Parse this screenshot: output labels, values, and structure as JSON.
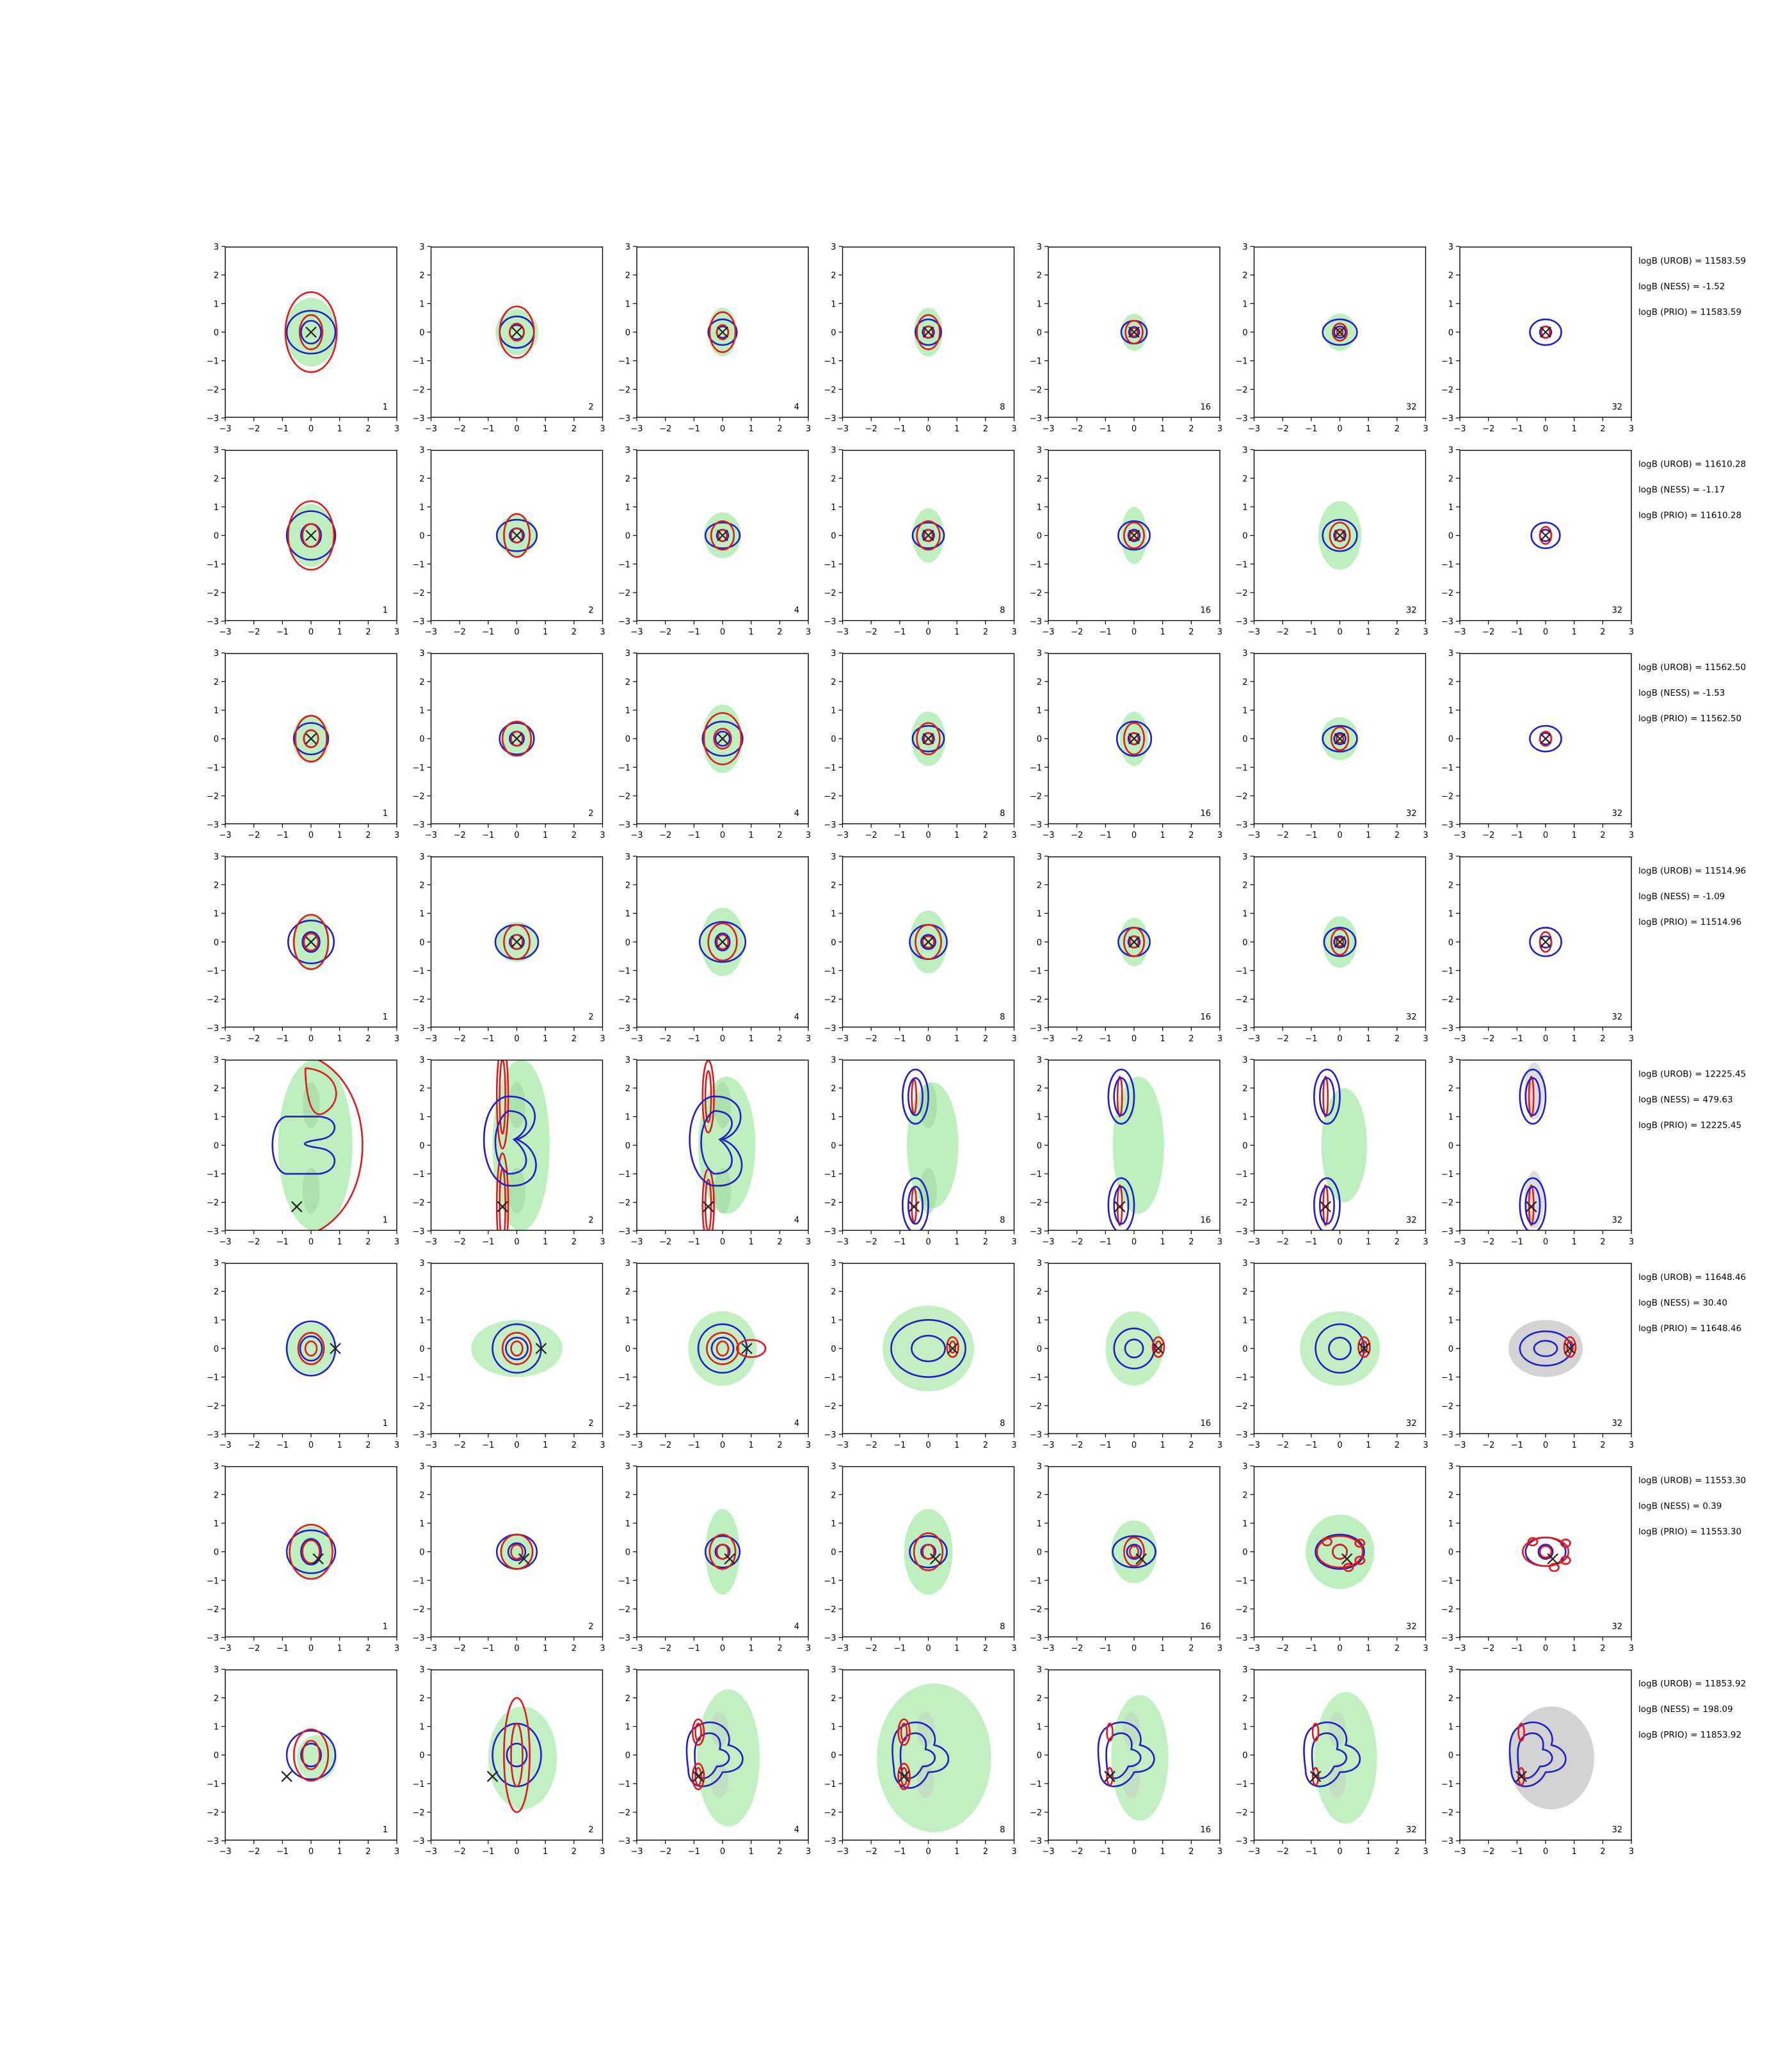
{
  "figure": {
    "grid_rows": 8,
    "grid_cols": 7
  },
  "chart_data": {
    "type": "contour-grid",
    "xlim": [
      -3,
      3
    ],
    "ylim": [
      -3,
      3
    ],
    "xticks": [
      -3,
      -2,
      -1,
      0,
      1,
      2,
      3
    ],
    "yticks": [
      -3,
      -2,
      -1,
      0,
      1,
      2,
      3
    ],
    "column_labels": [
      "1",
      "2",
      "4",
      "8",
      "16",
      "32",
      "32"
    ],
    "colors": {
      "red_contour": "#e31a1c",
      "blue_contour": "#1f1fcf",
      "green_fill": "#b3ecb3",
      "green_fill_inner": "#9ed99e",
      "gray_fill": "#c8c8c8",
      "marker": "#222222"
    },
    "rows": [
      {
        "shape": "blob",
        "marker": [
          0,
          0
        ],
        "annotations": [
          "logB (UROB) = 11583.59",
          "logB (NESS) = -1.52",
          "logB (PRIO) = 11583.59"
        ],
        "panels": [
          {
            "green": [
              0.9,
              1.2
            ],
            "red": [
              [
                0.9,
                1.4
              ],
              [
                0.4,
                0.6
              ]
            ],
            "blue": [
              [
                0.85,
                0.75
              ],
              [
                0.35,
                0.4
              ]
            ]
          },
          {
            "green": [
              0.75,
              0.8
            ],
            "red": [
              [
                0.6,
                0.9
              ],
              [
                0.25,
                0.3
              ]
            ],
            "blue": [
              [
                0.6,
                0.55
              ],
              [
                0.25,
                0.25
              ]
            ]
          },
          {
            "green": [
              0.5,
              0.85
            ],
            "red": [
              [
                0.45,
                0.7
              ],
              [
                0.2,
                0.25
              ]
            ],
            "blue": [
              [
                0.5,
                0.45
              ],
              [
                0.2,
                0.2
              ]
            ]
          },
          {
            "green": [
              0.5,
              0.85
            ],
            "red": [
              [
                0.4,
                0.6
              ],
              [
                0.15,
                0.2
              ]
            ],
            "blue": [
              [
                0.45,
                0.45
              ],
              [
                0.2,
                0.2
              ]
            ]
          },
          {
            "green": [
              0.45,
              0.65
            ],
            "red": [
              [
                0.3,
                0.4
              ],
              [
                0.12,
                0.15
              ]
            ],
            "blue": [
              [
                0.45,
                0.4
              ],
              [
                0.18,
                0.18
              ]
            ]
          },
          {
            "green": [
              0.55,
              0.65
            ],
            "red": [
              [
                0.25,
                0.3
              ],
              [
                0.1,
                0.12
              ]
            ],
            "blue": [
              [
                0.6,
                0.45
              ],
              [
                0.2,
                0.2
              ]
            ]
          },
          {
            "green": null,
            "red": [
              [
                0.15,
                0.2
              ]
            ],
            "blue": [
              [
                0.55,
                0.45
              ],
              [
                0.2,
                0.2
              ]
            ]
          }
        ]
      },
      {
        "shape": "blob",
        "marker": [
          0,
          0
        ],
        "annotations": [
          "logB (UROB) = 11610.28",
          "logB (NESS) = -1.17",
          "logB (PRIO) = 11610.28"
        ],
        "panels": [
          {
            "green": [
              0.8,
              1.1
            ],
            "red": [
              [
                0.8,
                1.2
              ],
              [
                0.3,
                0.4
              ]
            ],
            "blue": [
              [
                0.85,
                0.85
              ],
              [
                0.35,
                0.4
              ]
            ]
          },
          {
            "green": [
              0.7,
              0.7
            ],
            "red": [
              [
                0.45,
                0.75
              ],
              [
                0.2,
                0.25
              ]
            ],
            "blue": [
              [
                0.7,
                0.55
              ],
              [
                0.25,
                0.25
              ]
            ]
          },
          {
            "green": [
              0.65,
              0.8
            ],
            "red": [
              [
                0.4,
                0.5
              ],
              [
                0.15,
                0.2
              ]
            ],
            "blue": [
              [
                0.6,
                0.45
              ],
              [
                0.2,
                0.2
              ]
            ]
          },
          {
            "green": [
              0.55,
              0.95
            ],
            "red": [
              [
                0.4,
                0.5
              ],
              [
                0.15,
                0.2
              ]
            ],
            "blue": [
              [
                0.55,
                0.45
              ],
              [
                0.2,
                0.2
              ]
            ]
          },
          {
            "green": [
              0.45,
              1.0
            ],
            "red": [
              [
                0.35,
                0.45
              ],
              [
                0.15,
                0.15
              ]
            ],
            "blue": [
              [
                0.55,
                0.5
              ],
              [
                0.2,
                0.2
              ]
            ]
          },
          {
            "green": [
              0.75,
              1.2
            ],
            "red": [
              [
                0.35,
                0.45
              ],
              [
                0.15,
                0.2
              ]
            ],
            "blue": [
              [
                0.6,
                0.55
              ],
              [
                0.2,
                0.2
              ]
            ]
          },
          {
            "green": null,
            "red": [
              [
                0.2,
                0.3
              ]
            ],
            "blue": [
              [
                0.5,
                0.45
              ],
              [
                0.2,
                0.2
              ]
            ]
          }
        ]
      },
      {
        "shape": "blob",
        "marker": [
          0,
          0
        ],
        "annotations": [
          "logB (UROB) = 11562.50",
          "logB (NESS) = -1.53",
          "logB (PRIO) = 11562.50"
        ],
        "panels": [
          {
            "green": [
              0.65,
              0.85
            ],
            "red": [
              [
                0.55,
                0.8
              ],
              [
                0.25,
                0.3
              ]
            ],
            "blue": [
              [
                0.6,
                0.55
              ],
              [
                0.25,
                0.3
              ]
            ]
          },
          {
            "green": [
              0.55,
              0.6
            ],
            "red": [
              [
                0.5,
                0.6
              ],
              [
                0.2,
                0.25
              ]
            ],
            "blue": [
              [
                0.6,
                0.55
              ],
              [
                0.25,
                0.25
              ]
            ]
          },
          {
            "green": [
              0.7,
              1.2
            ],
            "red": [
              [
                0.65,
                0.9
              ],
              [
                0.3,
                0.35
              ]
            ],
            "blue": [
              [
                0.7,
                0.6
              ],
              [
                0.25,
                0.25
              ]
            ]
          },
          {
            "green": [
              0.6,
              0.95
            ],
            "red": [
              [
                0.4,
                0.55
              ],
              [
                0.15,
                0.2
              ]
            ],
            "blue": [
              [
                0.55,
                0.45
              ],
              [
                0.2,
                0.2
              ]
            ]
          },
          {
            "green": [
              0.5,
              0.95
            ],
            "red": [
              [
                0.35,
                0.55
              ],
              [
                0.15,
                0.2
              ]
            ],
            "blue": [
              [
                0.6,
                0.6
              ],
              [
                0.2,
                0.2
              ]
            ]
          },
          {
            "green": [
              0.65,
              0.75
            ],
            "red": [
              [
                0.3,
                0.4
              ],
              [
                0.12,
                0.15
              ]
            ],
            "blue": [
              [
                0.6,
                0.45
              ],
              [
                0.2,
                0.2
              ]
            ]
          },
          {
            "green": null,
            "red": [
              [
                0.2,
                0.25
              ]
            ],
            "blue": [
              [
                0.55,
                0.45
              ],
              [
                0.2,
                0.2
              ]
            ]
          }
        ]
      },
      {
        "shape": "blob",
        "marker": [
          0,
          0
        ],
        "annotations": [
          "logB (UROB) = 11514.96",
          "logB (NESS) = -1.09",
          "logB (PRIO) = 11514.96"
        ],
        "panels": [
          {
            "green": [
              0.65,
              1.0
            ],
            "red": [
              [
                0.6,
                0.95
              ],
              [
                0.25,
                0.3
              ]
            ],
            "blue": [
              [
                0.8,
                0.75
              ],
              [
                0.3,
                0.35
              ]
            ]
          },
          {
            "green": [
              0.75,
              0.7
            ],
            "red": [
              [
                0.45,
                0.6
              ],
              [
                0.2,
                0.25
              ]
            ],
            "blue": [
              [
                0.75,
                0.6
              ],
              [
                0.25,
                0.25
              ]
            ]
          },
          {
            "green": [
              0.75,
              1.2
            ],
            "red": [
              [
                0.5,
                0.65
              ],
              [
                0.2,
                0.25
              ]
            ],
            "blue": [
              [
                0.8,
                0.7
              ],
              [
                0.25,
                0.3
              ]
            ]
          },
          {
            "green": [
              0.65,
              1.1
            ],
            "red": [
              [
                0.45,
                0.6
              ],
              [
                0.2,
                0.2
              ]
            ],
            "blue": [
              [
                0.65,
                0.6
              ],
              [
                0.25,
                0.25
              ]
            ]
          },
          {
            "green": [
              0.5,
              0.85
            ],
            "red": [
              [
                0.35,
                0.5
              ],
              [
                0.15,
                0.2
              ]
            ],
            "blue": [
              [
                0.55,
                0.5
              ],
              [
                0.2,
                0.2
              ]
            ]
          },
          {
            "green": [
              0.6,
              0.9
            ],
            "red": [
              [
                0.3,
                0.45
              ],
              [
                0.12,
                0.15
              ]
            ],
            "blue": [
              [
                0.55,
                0.5
              ],
              [
                0.2,
                0.2
              ]
            ]
          },
          {
            "green": null,
            "red": [
              [
                0.2,
                0.35
              ]
            ],
            "blue": [
              [
                0.55,
                0.5
              ],
              [
                0.2,
                0.2
              ]
            ]
          }
        ]
      },
      {
        "shape": "bimodal",
        "marker": [
          -0.5,
          -2.15
        ],
        "annotations": [
          "logB (UROB) = 12225.45",
          "logB (NESS) = 479.63",
          "logB (PRIO) = 12225.45"
        ],
        "panels": [],
        "modes_y": [
          1.7,
          -2.1
        ]
      },
      {
        "shape": "offset",
        "marker": [
          0.85,
          0
        ],
        "annotations": [
          "logB (UROB) = 11648.46",
          "logB (NESS) = 30.40",
          "logB (PRIO) = 11648.46"
        ],
        "panels": []
      },
      {
        "shape": "multi",
        "marker": [
          0.25,
          -0.25
        ],
        "annotations": [
          "logB (UROB) = 11553.30",
          "logB (NESS) = 0.39",
          "logB (PRIO) = 11553.30"
        ],
        "panels": [
          {
            "green": [
              0.75,
              0.95
            ],
            "red": [
              [
                0.75,
                0.95
              ],
              [
                0.3,
                0.4
              ]
            ],
            "blue": [
              [
                0.85,
                0.75
              ],
              [
                0.35,
                0.45
              ]
            ]
          },
          {
            "green": [
              0.6,
              0.65
            ],
            "red": [
              [
                0.55,
                0.6
              ],
              [
                0.2,
                0.25
              ]
            ],
            "blue": [
              [
                0.7,
                0.6
              ],
              [
                0.3,
                0.3
              ]
            ]
          },
          {
            "green": [
              0.6,
              1.5
            ],
            "red": [
              [
                0.45,
                0.6
              ],
              [
                0.2,
                0.25
              ]
            ],
            "blue": [
              [
                0.6,
                0.55
              ],
              [
                0.25,
                0.25
              ]
            ]
          },
          {
            "green": [
              0.85,
              1.5
            ],
            "red": [
              [
                0.5,
                0.65
              ],
              [
                0.2,
                0.25
              ]
            ],
            "blue": [
              [
                0.65,
                0.55
              ],
              [
                0.25,
                0.25
              ]
            ]
          },
          {
            "green": [
              0.8,
              1.1
            ],
            "red": [
              [
                0.35,
                0.5
              ],
              [
                0.15,
                0.2
              ]
            ],
            "blue": [
              [
                0.75,
                0.55
              ],
              [
                0.25,
                0.25
              ]
            ]
          },
          {
            "green": [
              1.2,
              1.3
            ],
            "red": [
              [
                0.8,
                0.55
              ],
              [
                0.25,
                0.25
              ]
            ],
            "blue": [
              [
                0.85,
                0.6
              ],
              [
                0.25,
                0.25
              ]
            ]
          },
          {
            "green": null,
            "red": [
              [
                0.8,
                0.5
              ],
              [
                0.2,
                0.2
              ]
            ],
            "blue": [
              [
                0.7,
                0.5
              ],
              [
                0.25,
                0.25
              ]
            ]
          }
        ]
      },
      {
        "shape": "arc",
        "marker": [
          -0.85,
          -0.75
        ],
        "annotations": [
          "logB (UROB) = 11853.92",
          "logB (NESS) = 198.09",
          "logB (PRIO) = 11853.92"
        ],
        "panels": []
      }
    ]
  }
}
